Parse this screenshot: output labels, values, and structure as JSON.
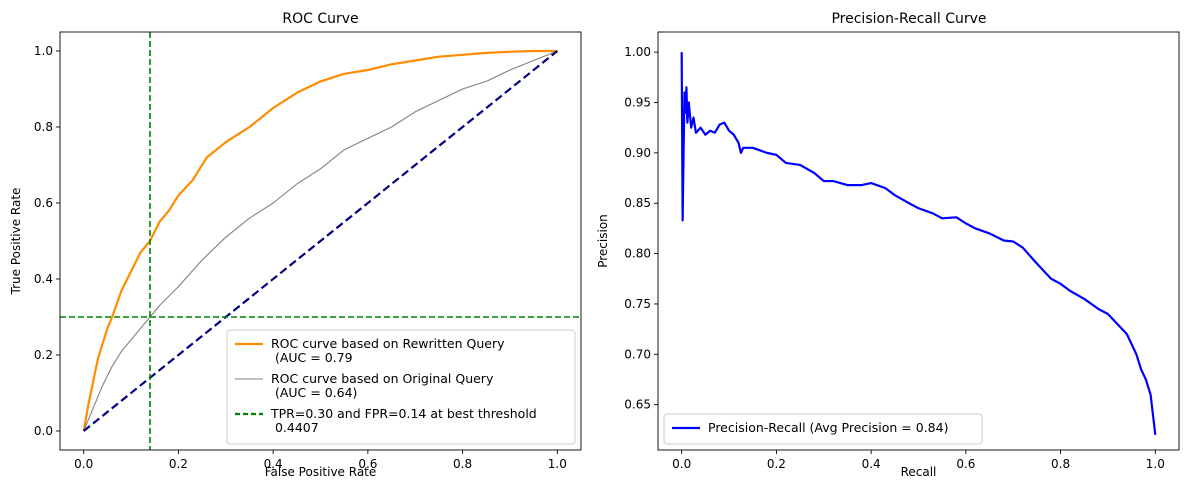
{
  "chart_data": [
    {
      "type": "line",
      "title": "ROC Curve",
      "xlabel": "False Positive Rate",
      "ylabel": "True Positive Rate",
      "xlim": [
        -0.05,
        1.05
      ],
      "ylim": [
        -0.05,
        1.05
      ],
      "xticks": [
        "0.0",
        "0.2",
        "0.4",
        "0.6",
        "0.8",
        "1.0"
      ],
      "yticks": [
        "0.0",
        "0.2",
        "0.4",
        "0.6",
        "0.8",
        "1.0"
      ],
      "grid": false,
      "legend_position": "lower-right",
      "series": [
        {
          "name": "ROC curve based on Rewritten Query\n (AUC = 0.79",
          "color": "#ff8c00",
          "style": "solid",
          "x": [
            0.0,
            0.01,
            0.02,
            0.03,
            0.04,
            0.05,
            0.06,
            0.08,
            0.1,
            0.12,
            0.14,
            0.16,
            0.18,
            0.2,
            0.23,
            0.26,
            0.3,
            0.35,
            0.4,
            0.45,
            0.5,
            0.55,
            0.6,
            0.65,
            0.7,
            0.75,
            0.8,
            0.85,
            0.9,
            0.95,
            1.0
          ],
          "y": [
            0.0,
            0.07,
            0.13,
            0.19,
            0.23,
            0.27,
            0.3,
            0.37,
            0.42,
            0.47,
            0.5,
            0.55,
            0.58,
            0.62,
            0.66,
            0.72,
            0.76,
            0.8,
            0.85,
            0.89,
            0.92,
            0.94,
            0.95,
            0.965,
            0.975,
            0.985,
            0.99,
            0.995,
            0.998,
            1.0,
            1.0
          ]
        },
        {
          "name": "ROC curve based on Original Query\n (AUC = 0.64)",
          "color": "#808080",
          "style": "solid",
          "x": [
            0.0,
            0.02,
            0.04,
            0.06,
            0.08,
            0.1,
            0.12,
            0.14,
            0.16,
            0.2,
            0.25,
            0.3,
            0.35,
            0.4,
            0.45,
            0.5,
            0.55,
            0.6,
            0.65,
            0.7,
            0.75,
            0.8,
            0.85,
            0.9,
            0.95,
            1.0
          ],
          "y": [
            0.0,
            0.06,
            0.12,
            0.17,
            0.21,
            0.24,
            0.27,
            0.3,
            0.33,
            0.38,
            0.45,
            0.51,
            0.56,
            0.6,
            0.65,
            0.69,
            0.74,
            0.77,
            0.8,
            0.84,
            0.87,
            0.9,
            0.92,
            0.95,
            0.975,
            1.0
          ]
        },
        {
          "name": "",
          "color": "#000080",
          "style": "dashed",
          "x": [
            0.0,
            1.0
          ],
          "y": [
            0.0,
            1.0
          ]
        }
      ],
      "reference_lines": [
        {
          "name": "TPR=0.30 and FPR=0.14 at best threshold\n 0.4407",
          "color": "#008000",
          "style": "dashed",
          "vertical_x": 0.14,
          "horizontal_y": 0.3
        }
      ]
    },
    {
      "type": "line",
      "title": "Precision-Recall Curve",
      "xlabel": "Recall",
      "ylabel": "Precision",
      "xlim": [
        -0.05,
        1.05
      ],
      "ylim": [
        0.605,
        1.02
      ],
      "xticks": [
        "0.0",
        "0.2",
        "0.4",
        "0.6",
        "0.8",
        "1.0"
      ],
      "yticks": [
        "0.65",
        "0.70",
        "0.75",
        "0.80",
        "0.85",
        "0.90",
        "0.95",
        "1.00"
      ],
      "grid": false,
      "legend_position": "lower-left",
      "series": [
        {
          "name": "Precision-Recall (Avg Precision = 0.84)",
          "color": "#0000ff",
          "style": "solid",
          "x": [
            0.0,
            0.002,
            0.004,
            0.006,
            0.008,
            0.01,
            0.012,
            0.015,
            0.02,
            0.025,
            0.03,
            0.04,
            0.05,
            0.06,
            0.07,
            0.08,
            0.09,
            0.1,
            0.11,
            0.12,
            0.125,
            0.13,
            0.15,
            0.18,
            0.2,
            0.22,
            0.25,
            0.28,
            0.3,
            0.32,
            0.35,
            0.38,
            0.4,
            0.43,
            0.45,
            0.48,
            0.5,
            0.53,
            0.55,
            0.58,
            0.6,
            0.62,
            0.65,
            0.68,
            0.7,
            0.72,
            0.75,
            0.78,
            0.8,
            0.82,
            0.85,
            0.88,
            0.9,
            0.92,
            0.94,
            0.96,
            0.97,
            0.98,
            0.99,
            0.995,
            1.0
          ],
          "y": [
            1.0,
            0.833,
            0.9,
            0.96,
            0.94,
            0.965,
            0.93,
            0.95,
            0.925,
            0.935,
            0.92,
            0.925,
            0.918,
            0.922,
            0.92,
            0.928,
            0.93,
            0.922,
            0.918,
            0.91,
            0.9,
            0.905,
            0.905,
            0.9,
            0.898,
            0.89,
            0.888,
            0.88,
            0.872,
            0.872,
            0.868,
            0.868,
            0.87,
            0.865,
            0.858,
            0.85,
            0.845,
            0.84,
            0.835,
            0.836,
            0.83,
            0.825,
            0.82,
            0.813,
            0.812,
            0.806,
            0.79,
            0.775,
            0.77,
            0.763,
            0.755,
            0.745,
            0.74,
            0.73,
            0.72,
            0.7,
            0.685,
            0.675,
            0.66,
            0.64,
            0.62
          ]
        }
      ]
    }
  ]
}
